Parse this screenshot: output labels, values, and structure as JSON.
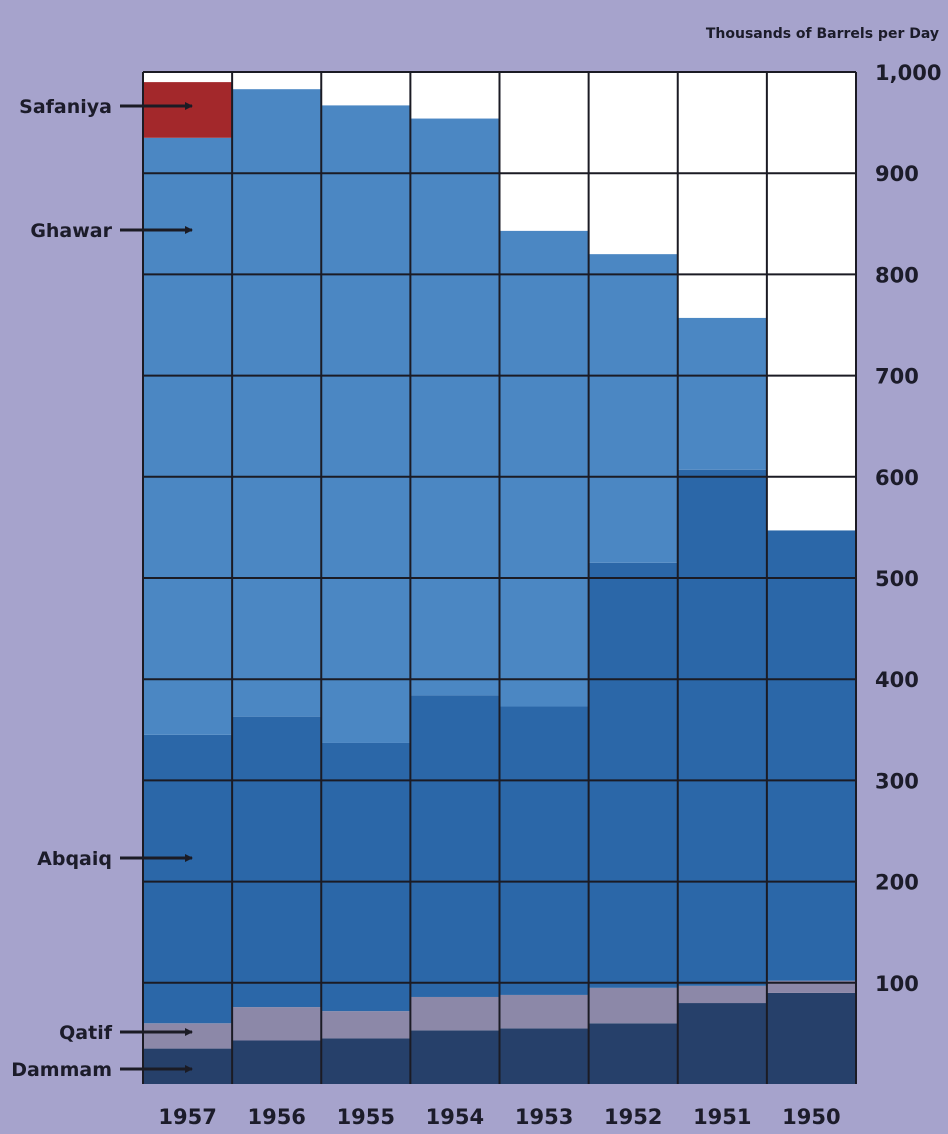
{
  "chart_data": {
    "type": "bar",
    "stacked": true,
    "title": "",
    "ylabel": "Thousands of Barrels per Day",
    "xlabel": "",
    "ylim": [
      0,
      1000
    ],
    "y_ticks": [
      100,
      200,
      300,
      400,
      500,
      600,
      700,
      800,
      900,
      1000
    ],
    "y_tick_labels": [
      "100",
      "200",
      "300",
      "400",
      "500",
      "600",
      "700",
      "800",
      "900",
      "1,000"
    ],
    "y_axis_side": "right",
    "grid": true,
    "categories": [
      "1957",
      "1956",
      "1955",
      "1954",
      "1953",
      "1952",
      "1951",
      "1950"
    ],
    "series": [
      {
        "name": "Dammam",
        "color": "#26406a",
        "values": [
          35,
          43,
          45,
          53,
          55,
          60,
          80,
          90
        ]
      },
      {
        "name": "Qatif",
        "color": "#8c88a8",
        "values": [
          25,
          33,
          27,
          33,
          33,
          35,
          17,
          12
        ]
      },
      {
        "name": "Abqaiq",
        "color": "#2b67a8",
        "values": [
          285,
          287,
          265,
          298,
          285,
          420,
          510,
          445
        ]
      },
      {
        "name": "Ghawar",
        "color": "#4b87c3",
        "values": [
          590,
          620,
          630,
          570,
          470,
          305,
          150,
          0
        ]
      },
      {
        "name": "Safaniya",
        "color": "#a3282b",
        "values": [
          55,
          0,
          0,
          0,
          0,
          0,
          0,
          0
        ]
      }
    ],
    "field_labels": [
      "Safaniya",
      "Ghawar",
      "Abqaiq",
      "Qatif",
      "Dammam"
    ]
  }
}
